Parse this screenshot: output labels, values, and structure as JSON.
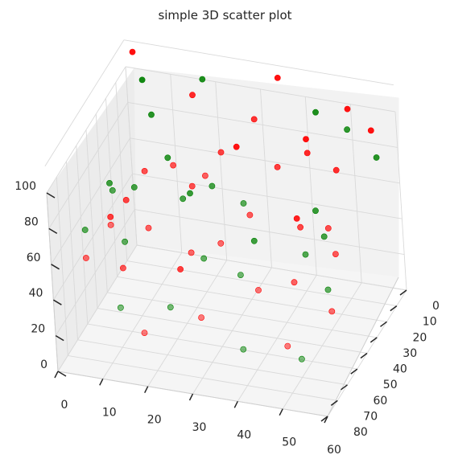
{
  "chart_data": {
    "type": "scatter",
    "title": "simple 3D scatter plot",
    "xlabel": "",
    "ylabel": "",
    "zlabel": "",
    "grid": true,
    "xlim": [
      0,
      60
    ],
    "ylim": [
      0,
      80
    ],
    "zlim": [
      0,
      100
    ],
    "xticks": [
      0,
      10,
      20,
      30,
      40,
      50,
      60
    ],
    "yticks": [
      0,
      10,
      20,
      30,
      40,
      50,
      60,
      70,
      80
    ],
    "zticks": [
      0,
      20,
      40,
      60,
      80,
      100
    ],
    "colors": {
      "red": "#ff0000",
      "green": "#008000",
      "pane_left": "#ececec",
      "pane_back": "#f2f2f2",
      "pane_floor": "#f5f5f5",
      "grid": "#d9d9d9",
      "tick_text": "#262626"
    },
    "series": [
      {
        "color": "#ff0000",
        "points": [
          {
            "x": 2,
            "y": 1,
            "z": 110
          },
          {
            "x": 35,
            "y": 4,
            "z": 112
          },
          {
            "x": 50,
            "y": 3,
            "z": 100
          },
          {
            "x": 40,
            "y": 2,
            "z": 78
          },
          {
            "x": 55,
            "y": 3,
            "z": 90
          },
          {
            "x": 25,
            "y": 5,
            "z": 70
          },
          {
            "x": 20,
            "y": 22,
            "z": 112
          },
          {
            "x": 35,
            "y": 28,
            "z": 110
          },
          {
            "x": 45,
            "y": 22,
            "z": 90
          },
          {
            "x": 52,
            "y": 25,
            "z": 86
          },
          {
            "x": 30,
            "y": 40,
            "z": 100
          },
          {
            "x": 42,
            "y": 38,
            "z": 95
          },
          {
            "x": 22,
            "y": 52,
            "z": 100
          },
          {
            "x": 15,
            "y": 50,
            "z": 92
          },
          {
            "x": 25,
            "y": 48,
            "z": 86
          },
          {
            "x": 31,
            "y": 60,
            "z": 105
          },
          {
            "x": 40,
            "y": 58,
            "z": 85
          },
          {
            "x": 18,
            "y": 62,
            "z": 72
          },
          {
            "x": 28,
            "y": 65,
            "z": 65
          },
          {
            "x": 36,
            "y": 70,
            "z": 78
          },
          {
            "x": 12,
            "y": 72,
            "z": 80
          },
          {
            "x": 5,
            "y": 68,
            "z": 55
          },
          {
            "x": 8,
            "y": 40,
            "z": 64
          },
          {
            "x": 3,
            "y": 35,
            "z": 48
          },
          {
            "x": 48,
            "y": 45,
            "z": 70
          },
          {
            "x": 55,
            "y": 48,
            "z": 75
          },
          {
            "x": 58,
            "y": 55,
            "z": 68
          },
          {
            "x": 50,
            "y": 62,
            "z": 55
          },
          {
            "x": 45,
            "y": 75,
            "z": 60
          },
          {
            "x": 60,
            "y": 70,
            "z": 50
          },
          {
            "x": 33,
            "y": 80,
            "z": 44
          },
          {
            "x": 20,
            "y": 80,
            "z": 30
          },
          {
            "x": 52,
            "y": 80,
            "z": 36
          },
          {
            "x": 10,
            "y": 55,
            "z": 40
          },
          {
            "x": 40,
            "y": 15,
            "z": 45
          },
          {
            "x": 18,
            "y": 35,
            "z": 25
          }
        ]
      },
      {
        "color": "#008000",
        "points": [
          {
            "x": 5,
            "y": 6,
            "z": 100
          },
          {
            "x": 20,
            "y": 12,
            "z": 112
          },
          {
            "x": 45,
            "y": 12,
            "z": 104
          },
          {
            "x": 55,
            "y": 25,
            "z": 110
          },
          {
            "x": 60,
            "y": 20,
            "z": 92
          },
          {
            "x": 10,
            "y": 20,
            "z": 95
          },
          {
            "x": 15,
            "y": 28,
            "z": 80
          },
          {
            "x": 28,
            "y": 42,
            "z": 82
          },
          {
            "x": 22,
            "y": 45,
            "z": 75
          },
          {
            "x": 38,
            "y": 55,
            "z": 88
          },
          {
            "x": 50,
            "y": 50,
            "z": 60
          },
          {
            "x": 57,
            "y": 60,
            "z": 52
          },
          {
            "x": 30,
            "y": 62,
            "z": 60
          },
          {
            "x": 12,
            "y": 60,
            "z": 60
          },
          {
            "x": 8,
            "y": 52,
            "z": 80
          },
          {
            "x": 2,
            "y": 55,
            "z": 58
          },
          {
            "x": 40,
            "y": 70,
            "z": 62
          },
          {
            "x": 42,
            "y": 80,
            "z": 30
          },
          {
            "x": 25,
            "y": 75,
            "z": 42
          },
          {
            "x": 55,
            "y": 80,
            "z": 30
          },
          {
            "x": 15,
            "y": 80,
            "z": 42
          },
          {
            "x": 35,
            "y": 35,
            "z": 48
          },
          {
            "x": 48,
            "y": 30,
            "z": 66
          },
          {
            "x": 20,
            "y": 30,
            "z": 64
          },
          {
            "x": 10,
            "y": 40,
            "z": 72
          },
          {
            "x": 52,
            "y": 40,
            "z": 62
          },
          {
            "x": 4,
            "y": 38,
            "z": 70
          }
        ]
      }
    ]
  }
}
